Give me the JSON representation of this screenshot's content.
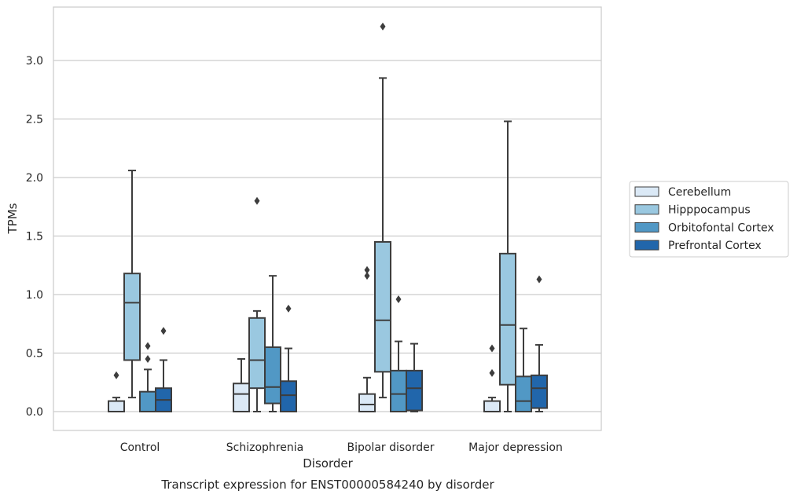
{
  "chart_data": {
    "type": "boxplot",
    "title": "",
    "caption": "Transcript expression for ENST00000584240 by disorder",
    "xlabel": "Disorder",
    "ylabel": "TPMs",
    "ylim": [
      -0.16,
      3.45
    ],
    "yticks": [
      "0.0",
      "0.5",
      "1.0",
      "1.5",
      "2.0",
      "2.5",
      "3.0"
    ],
    "grid": "horizontal",
    "legend_position": "right",
    "categories": [
      "Control",
      "Schizophrenia",
      "Bipolar disorder",
      "Major depression"
    ],
    "series": [
      {
        "name": "Cerebellum",
        "color": "#dbe9f6",
        "boxes": [
          {
            "whislo": 0.0,
            "q1": 0.0,
            "med": 0.0,
            "q3": 0.09,
            "whishi": 0.12,
            "fliers": [
              0.31
            ]
          },
          {
            "whislo": 0.0,
            "q1": 0.0,
            "med": 0.15,
            "q3": 0.24,
            "whishi": 0.45,
            "fliers": []
          },
          {
            "whislo": 0.0,
            "q1": 0.0,
            "med": 0.06,
            "q3": 0.15,
            "whishi": 0.29,
            "fliers": [
              1.16,
              1.21
            ]
          },
          {
            "whislo": 0.0,
            "q1": 0.0,
            "med": 0.0,
            "q3": 0.09,
            "whishi": 0.12,
            "fliers": [
              0.33,
              0.54
            ]
          }
        ]
      },
      {
        "name": "Hipppocampus",
        "color": "#9ac8e0",
        "boxes": [
          {
            "whislo": 0.12,
            "q1": 0.44,
            "med": 0.93,
            "q3": 1.18,
            "whishi": 2.06,
            "fliers": []
          },
          {
            "whislo": 0.0,
            "q1": 0.2,
            "med": 0.44,
            "q3": 0.8,
            "whishi": 0.86,
            "fliers": [
              1.8
            ]
          },
          {
            "whislo": 0.12,
            "q1": 0.34,
            "med": 0.78,
            "q3": 1.45,
            "whishi": 2.85,
            "fliers": [
              3.29
            ]
          },
          {
            "whislo": 0.0,
            "q1": 0.23,
            "med": 0.74,
            "q3": 1.35,
            "whishi": 2.48,
            "fliers": []
          }
        ]
      },
      {
        "name": "Orbitofontal Cortex",
        "color": "#5198c5",
        "boxes": [
          {
            "whislo": 0.0,
            "q1": 0.0,
            "med": 0.0,
            "q3": 0.17,
            "whishi": 0.36,
            "fliers": [
              0.45,
              0.56
            ]
          },
          {
            "whislo": 0.0,
            "q1": 0.07,
            "med": 0.21,
            "q3": 0.55,
            "whishi": 1.16,
            "fliers": []
          },
          {
            "whislo": 0.0,
            "q1": 0.0,
            "med": 0.15,
            "q3": 0.35,
            "whishi": 0.6,
            "fliers": [
              0.96
            ]
          },
          {
            "whislo": 0.0,
            "q1": 0.0,
            "med": 0.09,
            "q3": 0.3,
            "whishi": 0.71,
            "fliers": []
          }
        ]
      },
      {
        "name": "Prefrontal Cortex",
        "color": "#2166ab",
        "boxes": [
          {
            "whislo": 0.0,
            "q1": 0.0,
            "med": 0.1,
            "q3": 0.2,
            "whishi": 0.44,
            "fliers": [
              0.69
            ]
          },
          {
            "whislo": 0.0,
            "q1": 0.0,
            "med": 0.14,
            "q3": 0.26,
            "whishi": 0.54,
            "fliers": [
              0.88
            ]
          },
          {
            "whislo": 0.0,
            "q1": 0.01,
            "med": 0.2,
            "q3": 0.35,
            "whishi": 0.58,
            "fliers": []
          },
          {
            "whislo": 0.0,
            "q1": 0.03,
            "med": 0.2,
            "q3": 0.31,
            "whishi": 0.57,
            "fliers": [
              1.13
            ]
          }
        ]
      }
    ]
  }
}
